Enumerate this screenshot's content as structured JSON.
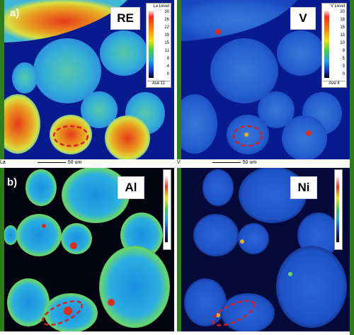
{
  "panel_a_letter": "a)",
  "panel_b_letter": "b)",
  "maps": [
    {
      "element": "RE",
      "scale_title": "La Level",
      "ticks": [
        "30",
        "26",
        "22",
        "19",
        "15",
        "11",
        "8",
        "4",
        "0"
      ],
      "average": "Ave 11",
      "scale_prefix": "La",
      "scale_text": "50 um"
    },
    {
      "element": "V",
      "scale_title": "V Level",
      "ticks": [
        "20",
        "18",
        "15",
        "13",
        "10",
        "8",
        "5",
        "3",
        "0"
      ],
      "average": "Ave 4",
      "scale_prefix": "V",
      "scale_text": "50 um"
    },
    {
      "element": "Al"
    },
    {
      "element": "Ni"
    }
  ],
  "colors": {
    "background": "#071a8e",
    "particle": "#3fb8d8",
    "rich_phase": "#e8201a",
    "highlight": "#d62020",
    "edge": "#2f7d1c"
  }
}
